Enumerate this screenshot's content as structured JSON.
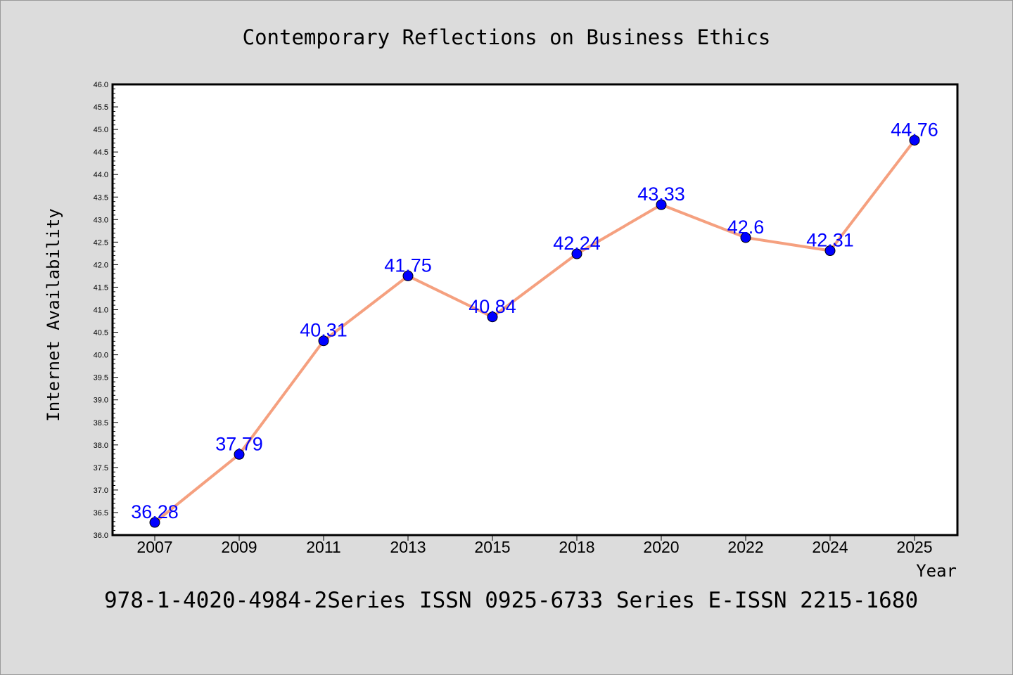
{
  "chart_data": {
    "type": "line",
    "title": "Contemporary Reflections on Business Ethics",
    "xlabel": "Year",
    "ylabel": "Internet Availability",
    "categories": [
      "2007",
      "2009",
      "2011",
      "2013",
      "2015",
      "2018",
      "2020",
      "2022",
      "2024",
      "2025"
    ],
    "series": [
      {
        "values": [
          36.28,
          37.79,
          40.31,
          41.75,
          40.84,
          42.24,
          43.33,
          42.6,
          42.31,
          44.76
        ],
        "data_labels": [
          "36.28",
          "37.79",
          "40.31",
          "41.75",
          "40.84",
          "42.24",
          "43.33",
          "42.6",
          "42.31",
          "44.76"
        ]
      }
    ],
    "ylim": [
      36.0,
      46.0
    ],
    "yticks": [
      "36.0",
      "36.5",
      "37.0",
      "37.5",
      "38.0",
      "38.5",
      "39.0",
      "39.5",
      "40.0",
      "40.5",
      "41.0",
      "41.5",
      "42.0",
      "42.5",
      "43.0",
      "43.5",
      "44.0",
      "44.5",
      "45.0",
      "45.5",
      "46.0"
    ],
    "grid": false,
    "colors": {
      "line": "#f5a07f",
      "marker": "#0000ff",
      "label": "#0000ff",
      "background": "#dcdcdc",
      "plot_background": "#ffffff"
    }
  },
  "footer": "978-1-4020-4984-2Series ISSN 0925-6733 Series E-ISSN 2215-1680"
}
